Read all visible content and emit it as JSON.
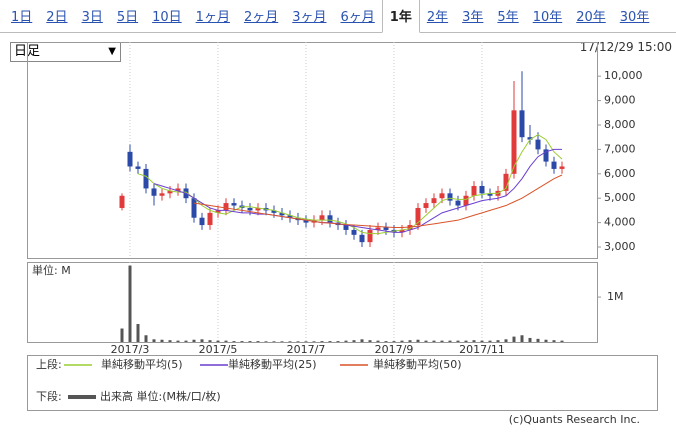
{
  "tabs": [
    "1日",
    "2日",
    "3日",
    "5日",
    "10日",
    "1ヶ月",
    "2ヶ月",
    "3ヶ月",
    "6ヶ月",
    "1年",
    "2年",
    "3年",
    "5年",
    "10年",
    "20年",
    "30年"
  ],
  "active_tab": 9,
  "period_select": "日足",
  "timestamp": "17/12/29 15:00",
  "legend_labels": {
    "upper": "上段:",
    "lower": "下段:"
  },
  "credit": "(c)Quants Research Inc.",
  "chart_data": [
    {
      "type": "candlestick",
      "categories": [
        null,
        "2017/3",
        null,
        null,
        null,
        null,
        null,
        null,
        null,
        null,
        null,
        null,
        "2017/5",
        null,
        null,
        null,
        null,
        null,
        null,
        null,
        null,
        null,
        null,
        "2017/7",
        null,
        null,
        null,
        null,
        null,
        null,
        null,
        null,
        null,
        null,
        "2017/9",
        null,
        null,
        null,
        null,
        null,
        null,
        null,
        null,
        null,
        null,
        "2017/11",
        null,
        null,
        null,
        null,
        null,
        null,
        null,
        null,
        null,
        null
      ],
      "open": [
        4600,
        6900,
        6300,
        6200,
        5400,
        5100,
        5200,
        5300,
        5400,
        5000,
        4200,
        3900,
        4400,
        4500,
        4800,
        4700,
        4600,
        4500,
        4600,
        4500,
        4400,
        4300,
        4200,
        4100,
        4000,
        4100,
        4300,
        4000,
        3900,
        3700,
        3500,
        3200,
        3700,
        3800,
        3700,
        3600,
        3700,
        3900,
        4600,
        4800,
        5000,
        5200,
        4900,
        4700,
        5100,
        5500,
        5200,
        5100,
        5300,
        6000,
        8600,
        7500,
        7400,
        7000,
        6500,
        6200
      ],
      "high": [
        5200,
        7200,
        6500,
        6400,
        5600,
        5400,
        5500,
        5600,
        5600,
        5200,
        4400,
        4600,
        4700,
        5000,
        5000,
        4900,
        4800,
        4800,
        4800,
        4700,
        4600,
        4500,
        4400,
        4300,
        4300,
        4500,
        4500,
        4200,
        4100,
        3900,
        3700,
        3900,
        4000,
        4000,
        3900,
        3900,
        4100,
        4800,
        5000,
        5200,
        5400,
        5400,
        5100,
        5300,
        5700,
        5700,
        5400,
        5500,
        6200,
        9800,
        10200,
        8000,
        7700,
        7200,
        6700,
        6500
      ],
      "low": [
        4500,
        6100,
        6000,
        5200,
        4700,
        4900,
        5000,
        5100,
        4800,
        4000,
        3700,
        3700,
        4200,
        4300,
        4500,
        4400,
        4300,
        4300,
        4300,
        4200,
        4100,
        4000,
        3900,
        3800,
        3800,
        3900,
        3800,
        3700,
        3500,
        3300,
        3000,
        3000,
        3500,
        3500,
        3400,
        3400,
        3500,
        3700,
        4400,
        4600,
        4800,
        4700,
        4500,
        4500,
        4900,
        5000,
        4900,
        4900,
        5100,
        5800,
        7300,
        7200,
        6800,
        6300,
        6000,
        6000
      ],
      "close": [
        5100,
        6300,
        6200,
        5400,
        5100,
        5200,
        5300,
        5400,
        5000,
        4200,
        3900,
        4400,
        4500,
        4800,
        4700,
        4600,
        4500,
        4600,
        4500,
        4400,
        4300,
        4200,
        4100,
        4000,
        4100,
        4300,
        4000,
        3900,
        3700,
        3500,
        3200,
        3700,
        3800,
        3700,
        3600,
        3700,
        3900,
        4600,
        4800,
        5000,
        5200,
        4900,
        4700,
        5100,
        5500,
        5200,
        5100,
        5300,
        6000,
        8600,
        7500,
        7400,
        7000,
        6500,
        6200,
        6300
      ],
      "up_color": "#e03a3a",
      "down_color": "#2b4aa8",
      "series": [
        {
          "name": "単純移動平均(5)",
          "color": "#9acd32",
          "values": [
            null,
            null,
            6000,
            5900,
            5600,
            5400,
            5300,
            5250,
            5250,
            5000,
            4700,
            4500,
            4400,
            4350,
            4500,
            4650,
            4650,
            4600,
            4550,
            4500,
            4400,
            4300,
            4200,
            4150,
            4100,
            4100,
            4100,
            4050,
            3950,
            3800,
            3600,
            3550,
            3550,
            3600,
            3650,
            3700,
            3750,
            4000,
            4300,
            4600,
            4900,
            5000,
            4950,
            4950,
            5100,
            5150,
            5200,
            5200,
            5400,
            6300,
            6900,
            7400,
            7600,
            7400,
            6900,
            6600
          ]
        },
        {
          "name": "単純移動平均(25)",
          "color": "#6a3fd0",
          "values": [
            null,
            null,
            null,
            null,
            5600,
            5500,
            5400,
            5300,
            5200,
            5000,
            4800,
            4600,
            4500,
            4500,
            4450,
            4400,
            4400,
            4350,
            4350,
            4300,
            4250,
            4200,
            4150,
            4100,
            4050,
            4000,
            4000,
            3950,
            3900,
            3850,
            3800,
            3750,
            3700,
            3650,
            3600,
            3600,
            3700,
            3800,
            4000,
            4200,
            4400,
            4500,
            4600,
            4700,
            4800,
            4900,
            4950,
            5000,
            5100,
            5400,
            5800,
            6300,
            6700,
            6900,
            7000,
            7000
          ]
        },
        {
          "name": "単純移動平均(50)",
          "color": "#d9542a",
          "values": [
            null,
            null,
            null,
            null,
            null,
            null,
            null,
            null,
            null,
            4800,
            4750,
            4700,
            4650,
            4600,
            4550,
            4500,
            4450,
            4400,
            4350,
            4300,
            4250,
            4200,
            4150,
            4100,
            4050,
            4000,
            3980,
            3950,
            3920,
            3900,
            3880,
            3860,
            3840,
            3820,
            3800,
            3800,
            3820,
            3850,
            3900,
            3950,
            4000,
            4050,
            4100,
            4200,
            4300,
            4400,
            4500,
            4600,
            4700,
            4850,
            5000,
            5200,
            5400,
            5600,
            5800,
            5950
          ]
        }
      ],
      "ylim": [
        2550,
        11400
      ],
      "yticks": [
        {
          "value": 3000,
          "label": "3,000"
        },
        {
          "value": 4000,
          "label": "4,000"
        },
        {
          "value": 5000,
          "label": "5,000"
        },
        {
          "value": 6000,
          "label": "6,000"
        },
        {
          "value": 7000,
          "label": "7,000"
        },
        {
          "value": 8000,
          "label": "8,000"
        },
        {
          "value": 9000,
          "label": "9,000"
        },
        {
          "value": 10000,
          "label": "10,000"
        }
      ],
      "grid": true
    },
    {
      "type": "bar",
      "unit_label": "単位: M",
      "series": [
        {
          "name": "出来高 単位:(M株/口/枚)",
          "color": "#555555",
          "values": [
            300000,
            1700000,
            400000,
            150000,
            60000,
            50000,
            40000,
            30000,
            30000,
            50000,
            60000,
            40000,
            30000,
            30000,
            20000,
            20000,
            20000,
            20000,
            15000,
            15000,
            15000,
            15000,
            15000,
            15000,
            15000,
            20000,
            20000,
            20000,
            30000,
            40000,
            60000,
            40000,
            30000,
            20000,
            20000,
            30000,
            40000,
            50000,
            30000,
            30000,
            30000,
            30000,
            30000,
            30000,
            40000,
            30000,
            30000,
            40000,
            60000,
            120000,
            150000,
            90000,
            70000,
            50000,
            40000,
            30000
          ]
        }
      ],
      "ylim": [
        0,
        1780000
      ],
      "yticks": [
        {
          "value": 1000000,
          "label": "1M"
        }
      ],
      "grid": true
    }
  ]
}
